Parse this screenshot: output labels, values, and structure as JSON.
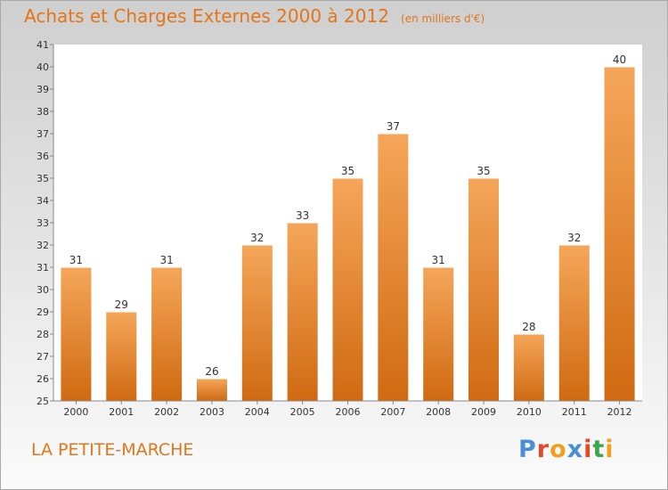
{
  "header": {
    "title": "Achats et Charges Externes 2000 à 2012",
    "subtitle": "(en milliers d'€)"
  },
  "footer": {
    "town": "LA PETITE-MARCHE",
    "logo_text": "Proxiti"
  },
  "colors": {
    "title": "#e2761a",
    "bar_top": "#f5a65a",
    "bar_bottom": "#d06a12",
    "logo_letters": [
      "#4a8fd6",
      "#e24a2a",
      "#f0a020",
      "#4a8fd6",
      "#e24a2a",
      "#3aa84a",
      "#f0a020"
    ]
  },
  "chart_data": {
    "type": "bar",
    "title": "Achats et Charges Externes 2000 à 2012",
    "subtitle": "(en milliers d'€)",
    "categories": [
      "2000",
      "2001",
      "2002",
      "2003",
      "2004",
      "2005",
      "2006",
      "2007",
      "2008",
      "2009",
      "2010",
      "2011",
      "2012"
    ],
    "values": [
      31,
      29,
      31,
      26,
      32,
      33,
      35,
      37,
      31,
      35,
      28,
      32,
      40
    ],
    "ylim": [
      25,
      41
    ],
    "yticks": [
      25,
      26,
      27,
      28,
      29,
      30,
      31,
      32,
      33,
      34,
      35,
      36,
      37,
      38,
      39,
      40,
      41
    ],
    "grid": false,
    "data_labels": true,
    "legend": false
  }
}
